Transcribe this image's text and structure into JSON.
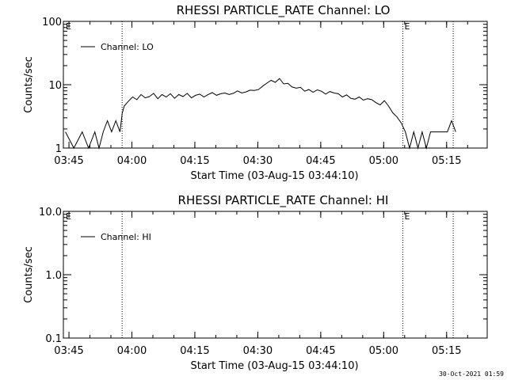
{
  "chart_data": [
    {
      "type": "line",
      "title": "RHESSI PARTICLE_RATE Channel: LO",
      "xlabel": "Start Time (03-Aug-15 03:44:10)",
      "ylabel": "Counts/sec",
      "yscale": "log",
      "ylim": [
        1,
        100
      ],
      "y_tick_labels": [
        "1",
        "10",
        "100"
      ],
      "y_tick_values": [
        1,
        10,
        100
      ],
      "x_tick_labels": [
        "03:45",
        "04:00",
        "04:15",
        "04:30",
        "04:45",
        "05:00",
        "05:15"
      ],
      "x_tick_minutes": [
        60.83,
        75.83,
        90.83,
        105.83,
        120.83,
        135.83,
        150.83
      ],
      "xlim_minutes": [
        59.5,
        160.5
      ],
      "legend_position": "top-left",
      "series": [
        {
          "name": "Channel: LO",
          "x_minutes": [
            60,
            62,
            64,
            65.5,
            67,
            68,
            69,
            70,
            71,
            72,
            73,
            73.5,
            74,
            75,
            76,
            77,
            78,
            79,
            80,
            81,
            82,
            83,
            84,
            85,
            86,
            87,
            88,
            89,
            90,
            91,
            92,
            93,
            94,
            95,
            96,
            97,
            98,
            99,
            100,
            101,
            102,
            103,
            104,
            105,
            106,
            107,
            108,
            109,
            110,
            111,
            112,
            113,
            114,
            115,
            116,
            117,
            118,
            119,
            120,
            121,
            122,
            123,
            124,
            125,
            126,
            127,
            128,
            129,
            130,
            131,
            132,
            133,
            134,
            135,
            136,
            137,
            138,
            139,
            140,
            141,
            142,
            143,
            144,
            145,
            146,
            147,
            148,
            149,
            150,
            151,
            152,
            153
          ],
          "y": [
            1.8,
            1.0,
            1.8,
            1.0,
            1.8,
            1.0,
            1.8,
            2.7,
            1.8,
            2.7,
            1.8,
            3.5,
            4.6,
            5.5,
            6.4,
            5.8,
            7.0,
            6.2,
            6.5,
            7.3,
            6.0,
            7.0,
            6.4,
            7.2,
            6.1,
            7.0,
            6.5,
            7.3,
            6.2,
            6.8,
            7.1,
            6.4,
            7.0,
            7.5,
            6.8,
            7.2,
            7.4,
            7.0,
            7.3,
            8.0,
            7.4,
            7.7,
            8.2,
            8.1,
            8.4,
            9.5,
            10.6,
            11.7,
            10.9,
            12.5,
            10.3,
            10.5,
            9.2,
            8.8,
            9.1,
            7.9,
            8.4,
            7.6,
            8.3,
            7.9,
            7.1,
            7.8,
            7.4,
            7.2,
            6.4,
            6.9,
            6.1,
            5.9,
            6.4,
            5.7,
            6.0,
            5.8,
            5.2,
            4.8,
            5.6,
            4.6,
            3.6,
            3.1,
            2.5,
            1.8,
            1.0,
            1.8,
            1.0,
            1.8,
            1.0,
            1.8,
            1.8,
            1.8,
            1.8,
            1.8,
            2.7,
            1.8
          ]
        }
      ],
      "markers": [
        {
          "label": "E",
          "x_minutes": 59.7
        },
        {
          "label": "E",
          "x_minutes": 140.4
        }
      ],
      "dotted_lines_minutes": [
        73.5,
        140.4,
        152.4
      ]
    },
    {
      "type": "line",
      "title": "RHESSI PARTICLE_RATE Channel: HI",
      "xlabel": "Start Time (03-Aug-15 03:44:10)",
      "ylabel": "Counts/sec",
      "yscale": "log",
      "ylim": [
        0.1,
        10
      ],
      "y_tick_labels": [
        "0.1",
        "1.0",
        "10.0"
      ],
      "y_tick_values": [
        0.1,
        1,
        10
      ],
      "x_tick_labels": [
        "03:45",
        "04:00",
        "04:15",
        "04:30",
        "04:45",
        "05:00",
        "05:15"
      ],
      "x_tick_minutes": [
        60.83,
        75.83,
        90.83,
        105.83,
        120.83,
        135.83,
        150.83
      ],
      "xlim_minutes": [
        59.5,
        160.5
      ],
      "legend_position": "top-left",
      "series": [
        {
          "name": "Channel: HI",
          "x_minutes": [],
          "y": []
        }
      ],
      "markers": [
        {
          "label": "E",
          "x_minutes": 59.7
        },
        {
          "label": "E",
          "x_minutes": 140.4
        }
      ],
      "dotted_lines_minutes": [
        73.5,
        140.4,
        152.4
      ]
    }
  ],
  "footer": {
    "timestamp": "30-Oct-2021 01:59"
  }
}
